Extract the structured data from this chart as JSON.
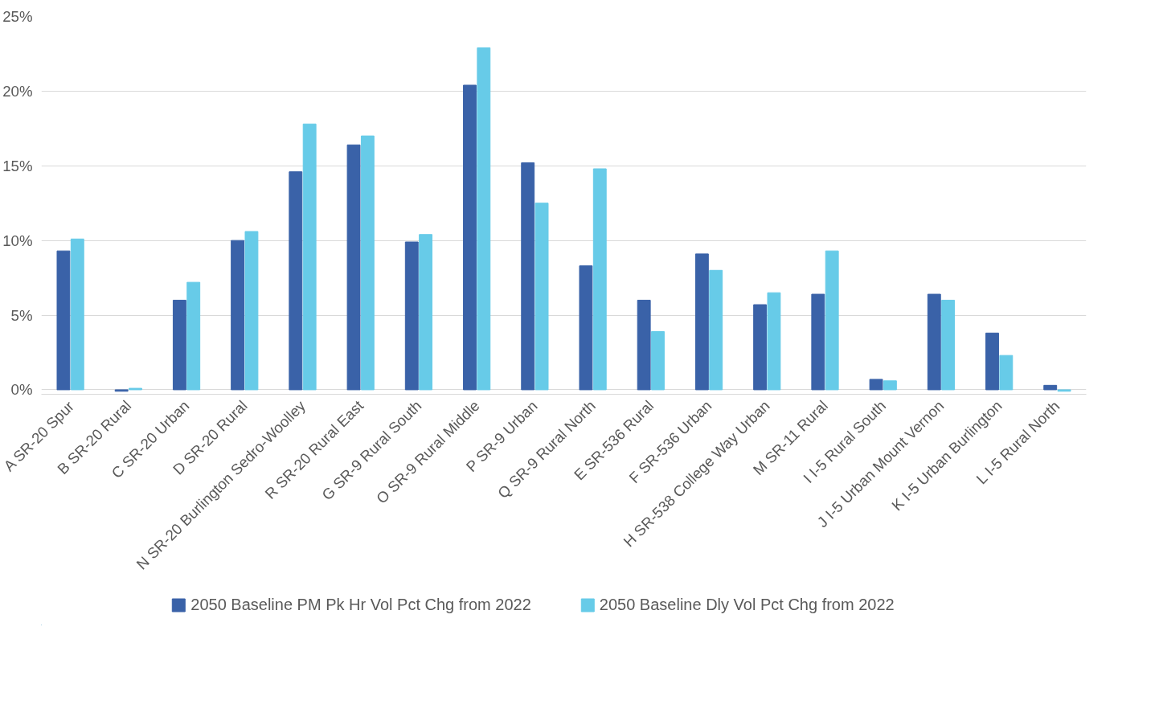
{
  "chart_data": {
    "type": "bar",
    "categories": [
      "A SR-20 Spur",
      "B SR-20 Rural",
      "C SR-20 Urban",
      "D SR-20 Rural",
      "N SR-20 Burlington Sedro-Woolley",
      "R SR-20 Rural East",
      "G SR-9 Rural South",
      "O SR-9 Rural Middle",
      "P SR-9 Urban",
      "Q SR-9 Rural North",
      "E SR-536 Rural",
      "F SR-536 Urban",
      "H SR-538 College Way Urban",
      "M SR-11 Rural",
      "I I-5 Rural South",
      "J I-5 Urban Mount Vernon",
      "K I-5 Urban Burlington",
      "L I-5 Rural North"
    ],
    "series": [
      {
        "name": "2050 Baseline PM Pk Hr Vol Pct Chg from 2022",
        "color": "#3a62a8",
        "values": [
          9.3,
          -0.1,
          6.0,
          10.0,
          14.6,
          16.4,
          9.9,
          20.4,
          15.2,
          8.3,
          6.0,
          9.1,
          5.7,
          6.4,
          0.7,
          6.4,
          3.8,
          0.3
        ]
      },
      {
        "name": "2050 Baseline Dly Vol Pct Chg from 2022",
        "color": "#67cbe8",
        "values": [
          10.1,
          0.1,
          7.2,
          10.6,
          17.8,
          17.0,
          10.4,
          22.9,
          12.5,
          14.8,
          3.9,
          8.0,
          6.5,
          9.3,
          0.6,
          6.0,
          2.3,
          -0.1
        ]
      }
    ],
    "ylim": [
      -0.3,
      25
    ],
    "yticks": [
      {
        "value": 0,
        "label": "0%"
      },
      {
        "value": 5,
        "label": "5%"
      },
      {
        "value": 10,
        "label": "10%"
      },
      {
        "value": 15,
        "label": "15%"
      },
      {
        "value": 20,
        "label": "20%"
      },
      {
        "value": 25,
        "label": "25%"
      }
    ],
    "grid": "y",
    "legend": "bottom"
  }
}
